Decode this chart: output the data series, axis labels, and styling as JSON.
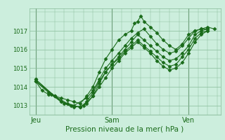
{
  "background_color": "#cceedd",
  "grid_color": "#88bb99",
  "line_color": "#1a6b1a",
  "marker_color": "#1a6b1a",
  "xlabel": "Pression niveau de la mer( hPa )",
  "ylim": [
    1012.5,
    1018.2
  ],
  "yticks": [
    1013,
    1014,
    1015,
    1016,
    1017
  ],
  "day_labels": [
    "Jeu",
    "Sam",
    "Ven"
  ],
  "day_positions": [
    0,
    48,
    96
  ],
  "vline_positions": [
    0,
    48,
    96
  ],
  "xmin": -4,
  "xmax": 116,
  "series": [
    [
      0,
      1014.3,
      4,
      1013.8,
      8,
      1013.6,
      12,
      1013.5,
      16,
      1013.4,
      20,
      1013.3,
      24,
      1013.2,
      28,
      1013.1,
      32,
      1013.5,
      36,
      1014.0,
      40,
      1014.8,
      44,
      1015.5,
      48,
      1016.0,
      52,
      1016.5,
      56,
      1016.8,
      60,
      1017.0,
      62,
      1017.4,
      64,
      1017.5,
      66,
      1017.8,
      68,
      1017.5,
      72,
      1017.2,
      76,
      1016.9,
      80,
      1016.5,
      84,
      1016.2,
      88,
      1016.0,
      92,
      1016.3,
      96,
      1016.8,
      100,
      1017.0,
      104,
      1017.1,
      108,
      1017.2,
      112,
      1017.1
    ],
    [
      0,
      1014.3,
      8,
      1013.7,
      16,
      1013.2,
      24,
      1013.0,
      32,
      1013.4,
      36,
      1013.8,
      40,
      1014.4,
      44,
      1015.0,
      48,
      1015.4,
      52,
      1015.8,
      56,
      1016.2,
      60,
      1016.6,
      64,
      1016.9,
      68,
      1017.1,
      72,
      1016.7,
      76,
      1016.3,
      80,
      1016.0,
      84,
      1015.8,
      88,
      1015.9,
      92,
      1016.2,
      96,
      1016.6,
      100,
      1017.0,
      104,
      1017.1,
      108,
      1017.1
    ],
    [
      0,
      1014.3,
      12,
      1013.5,
      20,
      1013.1,
      28,
      1012.9,
      32,
      1013.1,
      36,
      1013.5,
      40,
      1014.2,
      44,
      1014.8,
      48,
      1015.2,
      52,
      1015.6,
      56,
      1016.0,
      60,
      1016.4,
      64,
      1016.8,
      68,
      1016.5,
      72,
      1016.2,
      76,
      1015.9,
      80,
      1015.6,
      84,
      1015.4,
      88,
      1015.5,
      92,
      1015.8,
      96,
      1016.2,
      100,
      1016.8,
      104,
      1017.0,
      108,
      1017.1
    ],
    [
      0,
      1014.4,
      10,
      1013.6,
      16,
      1013.2,
      22,
      1013.0,
      28,
      1012.9,
      32,
      1013.2,
      36,
      1013.7,
      40,
      1014.3,
      44,
      1014.8,
      48,
      1015.2,
      52,
      1015.5,
      56,
      1015.9,
      60,
      1016.2,
      64,
      1016.5,
      68,
      1016.2,
      72,
      1015.9,
      76,
      1015.6,
      80,
      1015.3,
      84,
      1015.1,
      88,
      1015.2,
      92,
      1015.6,
      96,
      1016.0,
      100,
      1016.6,
      104,
      1016.9,
      108,
      1017.0
    ],
    [
      0,
      1014.4,
      12,
      1013.5,
      18,
      1013.1,
      24,
      1012.9,
      30,
      1013.0,
      36,
      1013.5,
      40,
      1014.0,
      44,
      1014.5,
      48,
      1015.0,
      52,
      1015.4,
      56,
      1015.8,
      60,
      1016.1,
      64,
      1016.4,
      68,
      1016.1,
      72,
      1015.8,
      76,
      1015.4,
      80,
      1015.1,
      84,
      1014.9,
      88,
      1015.0,
      92,
      1015.3,
      96,
      1015.8,
      100,
      1016.4,
      104,
      1016.8,
      108,
      1017.0
    ]
  ]
}
